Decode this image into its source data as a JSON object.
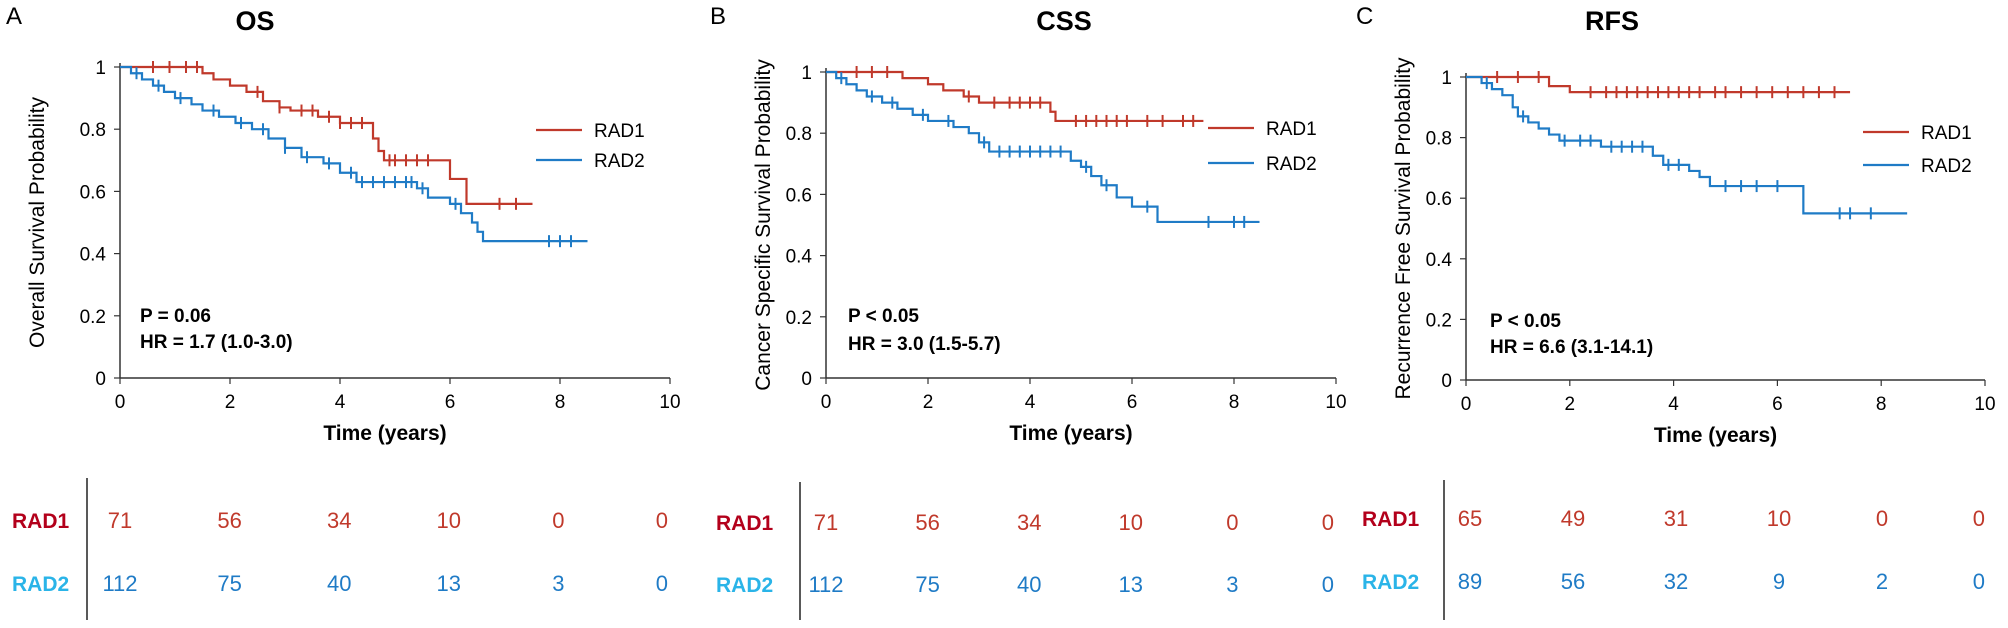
{
  "colors": {
    "RAD1": "#c0392b",
    "RAD2": "#1f7bc6",
    "RAD2_label": "#2ab4e8",
    "RAD1_label": "#b3001b"
  },
  "chart_data": [
    {
      "type": "line",
      "panel": "A",
      "title": "OS",
      "xlabel": "Time (years)",
      "ylabel": "Overall Survival Probability",
      "xlim": [
        0,
        10
      ],
      "ylim": [
        0,
        1
      ],
      "xticks": [
        "0",
        "2",
        "4",
        "6",
        "8",
        "10"
      ],
      "yticks": [
        "0",
        "0.2",
        "0.4",
        "0.6",
        "0.8",
        "1"
      ],
      "stats": [
        "P = 0.06",
        "HR = 1.7 (1.0-3.0)"
      ],
      "series": [
        {
          "name": "RAD1",
          "steps": [
            [
              0,
              1
            ],
            [
              1.5,
              0.98
            ],
            [
              1.7,
              0.96
            ],
            [
              2.0,
              0.94
            ],
            [
              2.3,
              0.92
            ],
            [
              2.6,
              0.89
            ],
            [
              2.9,
              0.87
            ],
            [
              3.1,
              0.86
            ],
            [
              3.6,
              0.84
            ],
            [
              4.0,
              0.82
            ],
            [
              4.6,
              0.77
            ],
            [
              4.7,
              0.73
            ],
            [
              4.8,
              0.7
            ],
            [
              5.5,
              0.7
            ],
            [
              6.0,
              0.64
            ],
            [
              6.3,
              0.56
            ],
            [
              7.5,
              0.56
            ]
          ],
          "censors": [
            0.6,
            0.9,
            1.2,
            1.4,
            2.5,
            2.9,
            3.3,
            3.5,
            3.8,
            4.0,
            4.2,
            4.4,
            4.9,
            5.0,
            5.2,
            5.4,
            5.6,
            6.9,
            7.2
          ]
        },
        {
          "name": "RAD2",
          "steps": [
            [
              0,
              1
            ],
            [
              0.2,
              0.98
            ],
            [
              0.4,
              0.96
            ],
            [
              0.6,
              0.94
            ],
            [
              0.8,
              0.92
            ],
            [
              1.0,
              0.9
            ],
            [
              1.3,
              0.88
            ],
            [
              1.5,
              0.86
            ],
            [
              1.8,
              0.84
            ],
            [
              2.1,
              0.82
            ],
            [
              2.4,
              0.8
            ],
            [
              2.7,
              0.77
            ],
            [
              3.0,
              0.74
            ],
            [
              3.3,
              0.71
            ],
            [
              3.7,
              0.69
            ],
            [
              4.0,
              0.66
            ],
            [
              4.3,
              0.63
            ],
            [
              5.4,
              0.61
            ],
            [
              5.6,
              0.58
            ],
            [
              6.0,
              0.56
            ],
            [
              6.2,
              0.53
            ],
            [
              6.4,
              0.5
            ],
            [
              6.5,
              0.47
            ],
            [
              6.6,
              0.44
            ],
            [
              8.5,
              0.44
            ]
          ],
          "censors": [
            0.3,
            0.7,
            1.1,
            1.7,
            2.2,
            2.6,
            3.0,
            3.4,
            3.8,
            4.2,
            4.4,
            4.6,
            4.8,
            5.0,
            5.2,
            5.3,
            5.5,
            6.1,
            7.8,
            8.0,
            8.2
          ]
        }
      ],
      "legend": [
        "RAD1",
        "RAD2"
      ],
      "risk_table": {
        "RAD1": [
          "71",
          "56",
          "34",
          "10",
          "0",
          "0"
        ],
        "RAD2": [
          "112",
          "75",
          "40",
          "13",
          "3",
          "0"
        ]
      }
    },
    {
      "type": "line",
      "panel": "B",
      "title": "CSS",
      "xlabel": "Time (years)",
      "ylabel": "Cancer Specific Survival Probability",
      "xlim": [
        0,
        10
      ],
      "ylim": [
        0,
        1
      ],
      "xticks": [
        "0",
        "2",
        "4",
        "6",
        "8",
        "10"
      ],
      "yticks": [
        "0",
        "0.2",
        "0.4",
        "0.6",
        "0.8",
        "1"
      ],
      "stats": [
        "P < 0.05",
        "HR = 3.0 (1.5-5.7)"
      ],
      "series": [
        {
          "name": "RAD1",
          "steps": [
            [
              0,
              1
            ],
            [
              1.5,
              0.98
            ],
            [
              2.0,
              0.96
            ],
            [
              2.3,
              0.94
            ],
            [
              2.7,
              0.92
            ],
            [
              3.0,
              0.9
            ],
            [
              4.4,
              0.87
            ],
            [
              4.5,
              0.84
            ],
            [
              7.4,
              0.84
            ]
          ],
          "censors": [
            0.6,
            0.9,
            1.2,
            2.8,
            3.3,
            3.6,
            3.8,
            4.0,
            4.2,
            4.9,
            5.1,
            5.3,
            5.5,
            5.7,
            5.9,
            6.3,
            6.6,
            7.0,
            7.2
          ]
        },
        {
          "name": "RAD2",
          "steps": [
            [
              0,
              1
            ],
            [
              0.2,
              0.98
            ],
            [
              0.4,
              0.96
            ],
            [
              0.6,
              0.94
            ],
            [
              0.8,
              0.92
            ],
            [
              1.1,
              0.9
            ],
            [
              1.4,
              0.88
            ],
            [
              1.7,
              0.86
            ],
            [
              2.0,
              0.84
            ],
            [
              2.5,
              0.82
            ],
            [
              2.8,
              0.8
            ],
            [
              3.0,
              0.77
            ],
            [
              3.2,
              0.74
            ],
            [
              4.8,
              0.71
            ],
            [
              5.0,
              0.69
            ],
            [
              5.2,
              0.66
            ],
            [
              5.4,
              0.63
            ],
            [
              5.7,
              0.59
            ],
            [
              6.0,
              0.56
            ],
            [
              6.5,
              0.51
            ],
            [
              8.5,
              0.51
            ]
          ],
          "censors": [
            0.3,
            0.9,
            1.3,
            1.9,
            2.4,
            3.1,
            3.4,
            3.6,
            3.8,
            4.0,
            4.2,
            4.4,
            4.6,
            5.1,
            5.5,
            6.3,
            7.5,
            8.0,
            8.2
          ]
        }
      ],
      "legend": [
        "RAD1",
        "RAD2"
      ],
      "risk_table": {
        "RAD1": [
          "71",
          "56",
          "34",
          "10",
          "0",
          "0"
        ],
        "RAD2": [
          "112",
          "75",
          "40",
          "13",
          "3",
          "0"
        ]
      }
    },
    {
      "type": "line",
      "panel": "C",
      "title": "RFS",
      "xlabel": "Time (years)",
      "ylabel": "Recurrence Free Survival Probability",
      "xlim": [
        0,
        10
      ],
      "ylim": [
        0,
        1
      ],
      "xticks": [
        "0",
        "2",
        "4",
        "6",
        "8",
        "10"
      ],
      "yticks": [
        "0",
        "0.2",
        "0.4",
        "0.6",
        "0.8",
        "1"
      ],
      "stats": [
        "P < 0.05",
        "HR = 6.6 (3.1-14.1)"
      ],
      "series": [
        {
          "name": "RAD1",
          "steps": [
            [
              0,
              1
            ],
            [
              1.6,
              0.97
            ],
            [
              2.0,
              0.95
            ],
            [
              7.4,
              0.95
            ]
          ],
          "censors": [
            0.6,
            1.0,
            1.4,
            2.4,
            2.7,
            2.9,
            3.1,
            3.3,
            3.5,
            3.7,
            3.9,
            4.1,
            4.3,
            4.5,
            4.8,
            5.0,
            5.3,
            5.6,
            5.9,
            6.2,
            6.5,
            6.8,
            7.1
          ]
        },
        {
          "name": "RAD2",
          "steps": [
            [
              0,
              1
            ],
            [
              0.3,
              0.98
            ],
            [
              0.5,
              0.96
            ],
            [
              0.7,
              0.94
            ],
            [
              0.9,
              0.9
            ],
            [
              1.0,
              0.87
            ],
            [
              1.2,
              0.85
            ],
            [
              1.4,
              0.83
            ],
            [
              1.6,
              0.81
            ],
            [
              1.8,
              0.79
            ],
            [
              2.6,
              0.77
            ],
            [
              3.6,
              0.74
            ],
            [
              3.8,
              0.71
            ],
            [
              4.3,
              0.69
            ],
            [
              4.5,
              0.67
            ],
            [
              4.7,
              0.64
            ],
            [
              6.5,
              0.55
            ],
            [
              8.5,
              0.55
            ]
          ],
          "censors": [
            0.4,
            1.1,
            1.9,
            2.2,
            2.4,
            2.8,
            3.0,
            3.2,
            3.4,
            3.9,
            4.1,
            5.0,
            5.3,
            5.6,
            6.0,
            7.2,
            7.4,
            7.8
          ]
        }
      ],
      "legend": [
        "RAD1",
        "RAD2"
      ],
      "risk_table": {
        "RAD1": [
          "65",
          "49",
          "31",
          "10",
          "0",
          "0"
        ],
        "RAD2": [
          "89",
          "56",
          "32",
          "9",
          "2",
          "0"
        ]
      }
    }
  ]
}
